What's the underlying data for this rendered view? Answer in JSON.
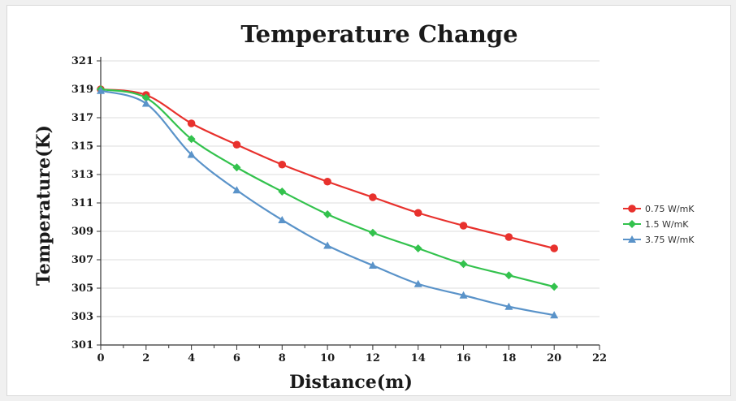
{
  "chart_data": {
    "type": "line",
    "title": "Temperature Change",
    "xlabel": "Distance(m)",
    "ylabel": "Temperature(K)",
    "xlim": [
      0,
      22
    ],
    "ylim": [
      301,
      321
    ],
    "xticks": [
      0,
      2,
      4,
      6,
      8,
      10,
      12,
      14,
      16,
      18,
      20,
      22
    ],
    "yticks": [
      301,
      303,
      305,
      307,
      309,
      311,
      313,
      315,
      317,
      319,
      321
    ],
    "grid": "horizontal",
    "legend_position": "right",
    "x": [
      0,
      2,
      4,
      6,
      8,
      10,
      12,
      14,
      16,
      18,
      20
    ],
    "series": [
      {
        "name": "0.75 W/mK",
        "color": "#e8312d",
        "marker": "circle",
        "values": [
          319.0,
          318.6,
          316.6,
          315.1,
          313.7,
          312.5,
          311.4,
          310.3,
          309.4,
          308.6,
          307.8
        ]
      },
      {
        "name": "1.5 W/mK",
        "color": "#33c24d",
        "marker": "diamond",
        "values": [
          319.0,
          318.4,
          315.5,
          313.5,
          311.8,
          310.2,
          308.9,
          307.8,
          306.7,
          305.9,
          305.1
        ]
      },
      {
        "name": "3.75 W/mK",
        "color": "#5a93c9",
        "marker": "triangle",
        "values": [
          318.9,
          318.0,
          314.4,
          311.9,
          309.8,
          308.0,
          306.6,
          305.3,
          304.5,
          303.7,
          303.1
        ]
      }
    ]
  }
}
